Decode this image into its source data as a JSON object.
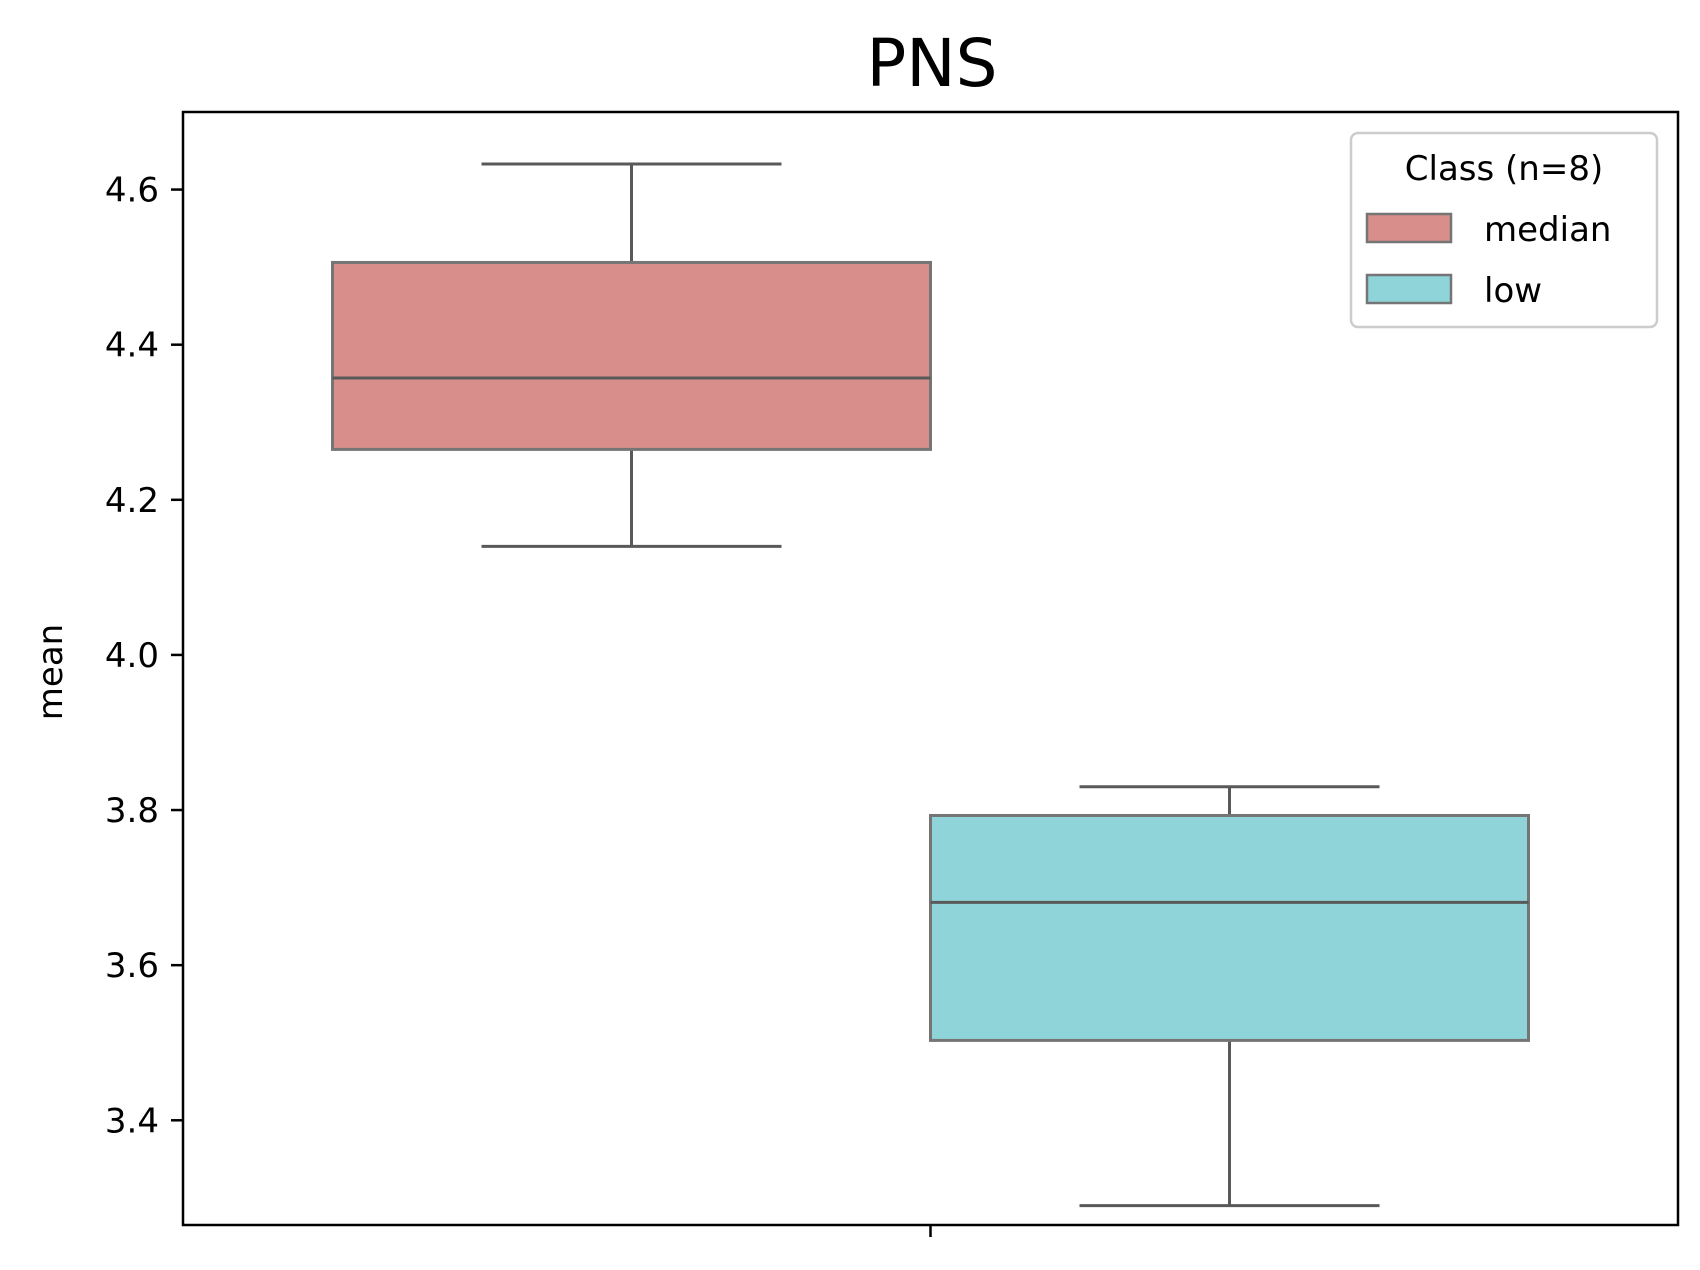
{
  "chart_data": {
    "type": "box",
    "title": "PNS",
    "xlabel": "",
    "ylabel": "mean",
    "ylim": [
      3.265,
      4.7
    ],
    "yticks": [
      "3.4",
      "3.6",
      "3.8",
      "4.0",
      "4.2",
      "4.4",
      "4.6"
    ],
    "ytick_values": [
      3.4,
      3.6,
      3.8,
      4.0,
      4.2,
      4.4,
      4.6
    ],
    "legend": {
      "title": "Class (n=8)",
      "position": "top-right",
      "entries": [
        "median",
        "low"
      ]
    },
    "series": [
      {
        "name": "median",
        "color": "#d88f8c",
        "whisker_low": 4.14,
        "q1": 4.265,
        "median": 4.357,
        "q3": 4.506,
        "whisker_high": 4.633
      },
      {
        "name": "low",
        "color": "#8fd4d9",
        "whisker_low": 3.29,
        "q1": 3.503,
        "median": 3.681,
        "q3": 3.793,
        "whisker_high": 3.83
      }
    ],
    "colors": {
      "box_edge": "#757575",
      "whisker": "#595959",
      "axes": "#000000",
      "legend_edge": "#cccccc"
    }
  }
}
